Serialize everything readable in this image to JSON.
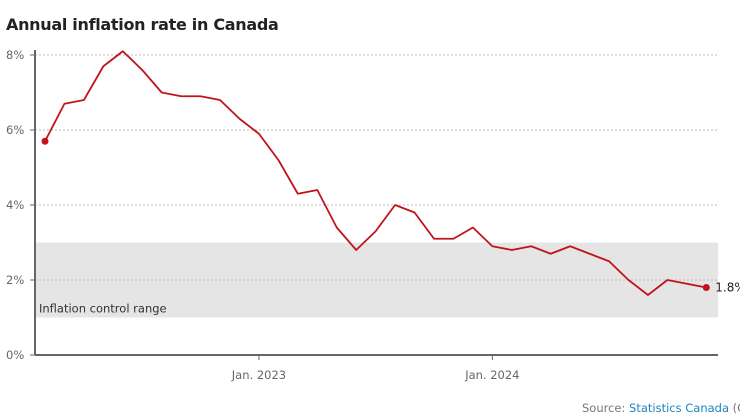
{
  "chart_data": {
    "type": "line",
    "title": "Annual inflation rate in Canada",
    "x": [
      "2022-02",
      "2022-03",
      "2022-04",
      "2022-05",
      "2022-06",
      "2022-07",
      "2022-08",
      "2022-09",
      "2022-10",
      "2022-11",
      "2022-12",
      "2023-01",
      "2023-02",
      "2023-03",
      "2023-04",
      "2023-05",
      "2023-06",
      "2023-07",
      "2023-08",
      "2023-09",
      "2023-10",
      "2023-11",
      "2023-12",
      "2024-01",
      "2024-02",
      "2024-03",
      "2024-04",
      "2024-05",
      "2024-06",
      "2024-07",
      "2024-08",
      "2024-09",
      "2024-10",
      "2024-11",
      "2024-12"
    ],
    "series": [
      {
        "values": [
          5.7,
          6.7,
          6.8,
          7.7,
          8.1,
          7.6,
          7.0,
          6.9,
          6.9,
          6.8,
          6.3,
          5.9,
          5.2,
          4.3,
          4.4,
          3.4,
          2.8,
          3.3,
          4.0,
          3.8,
          3.1,
          3.1,
          3.4,
          2.9,
          2.8,
          2.9,
          2.7,
          2.9,
          2.7,
          2.5,
          2.0,
          1.6,
          2.0,
          1.9,
          1.8
        ],
        "color": "#c0141c"
      }
    ],
    "ylim": [
      0,
      8
    ],
    "y_ticks": [
      {
        "value": 0,
        "label": "0%"
      },
      {
        "value": 2,
        "label": "2%"
      },
      {
        "value": 4,
        "label": "4%"
      },
      {
        "value": 6,
        "label": "6%"
      },
      {
        "value": 8,
        "label": "8%"
      }
    ],
    "x_ticks": [
      {
        "value": "2023-01",
        "label": "Jan. 2023"
      },
      {
        "value": "2024-01",
        "label": "Jan. 2024"
      }
    ],
    "grid": true,
    "band": {
      "from": 1,
      "to": 3,
      "label": "Inflation control range",
      "color": "#e5e5e5"
    },
    "end_label": "1.8%",
    "xlabel": "",
    "ylabel": ""
  },
  "source": {
    "prefix": "Source: ",
    "link": "Statistics Canada",
    "suffix": " (CBC"
  }
}
